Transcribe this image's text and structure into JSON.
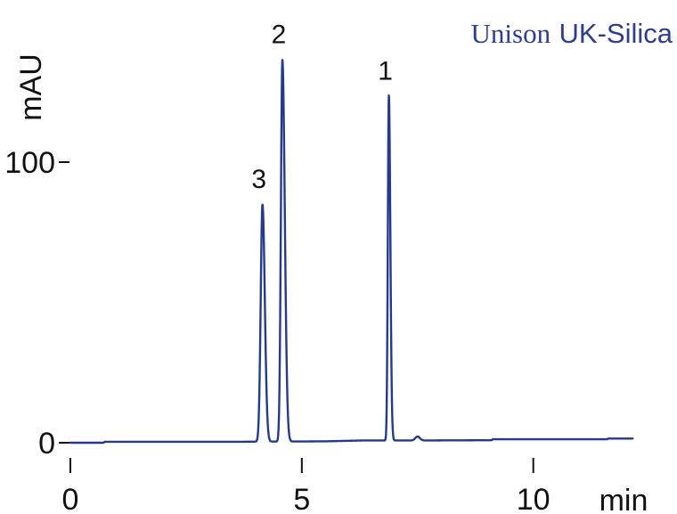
{
  "brand": {
    "prefix": "Unison",
    "product": "UK-Silica",
    "color": "#2e3d8f"
  },
  "chart_data": {
    "type": "line",
    "title": "",
    "xlabel": "min",
    "ylabel": "mAU",
    "xlim": [
      0,
      12.2
    ],
    "ylim": [
      0,
      135
    ],
    "x_ticks": [
      0,
      5,
      10
    ],
    "x_tick_labels": [
      "0",
      "5",
      "10"
    ],
    "y_ticks": [
      0,
      100
    ],
    "y_tick_labels": [
      "0",
      "100"
    ],
    "grid": false,
    "line_color": "#233a8e",
    "baseline": [
      {
        "t": 0.0,
        "y": 0.0
      },
      {
        "t": 0.72,
        "y": 0.0
      },
      {
        "t": 0.74,
        "y": 0.35
      },
      {
        "t": 3.7,
        "y": 0.35
      },
      {
        "t": 5.5,
        "y": 0.5
      },
      {
        "t": 6.3,
        "y": 0.8
      },
      {
        "t": 7.4,
        "y": 0.8
      },
      {
        "t": 9.1,
        "y": 0.9
      },
      {
        "t": 9.12,
        "y": 1.25
      },
      {
        "t": 11.6,
        "y": 1.25
      },
      {
        "t": 11.62,
        "y": 1.5
      },
      {
        "t": 12.15,
        "y": 1.5
      }
    ],
    "peaks": [
      {
        "label": "3",
        "time": 4.15,
        "height": 84.5,
        "sigma_left": 0.038,
        "sigma_right": 0.05
      },
      {
        "label": "2",
        "time": 4.58,
        "height": 136.0,
        "sigma_left": 0.032,
        "sigma_right": 0.052
      },
      {
        "label": "1",
        "time": 6.88,
        "height": 123.0,
        "sigma_left": 0.022,
        "sigma_right": 0.032
      },
      {
        "label": "",
        "time": 7.5,
        "height": 1.4,
        "sigma_left": 0.05,
        "sigma_right": 0.05
      }
    ]
  }
}
